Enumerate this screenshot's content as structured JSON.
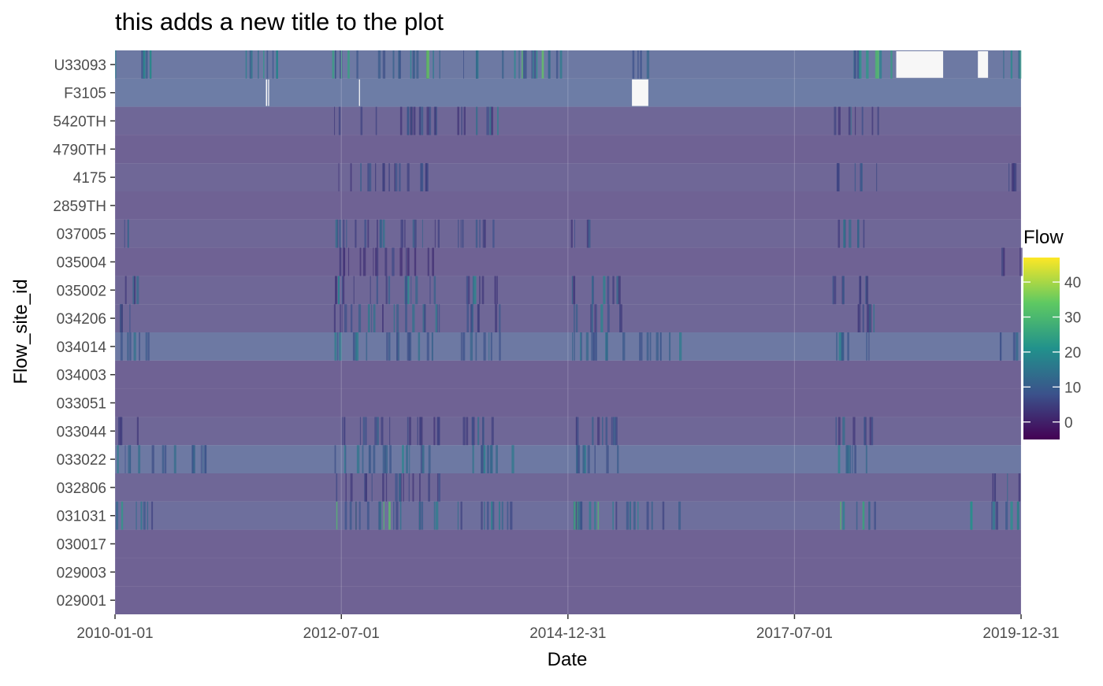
{
  "chart_data": {
    "type": "heatmap",
    "title": "this adds a new title to the plot",
    "xlabel": "Date",
    "ylabel": "Flow_site_id",
    "x_range": [
      "2010-01-01",
      "2019-12-31"
    ],
    "x_ticks": [
      "2010-01-01",
      "2012-07-01",
      "2014-12-31",
      "2017-07-01",
      "2019-12-31"
    ],
    "y_categories": [
      "U33093",
      "F3105",
      "5420TH",
      "4790TH",
      "4175",
      "2859TH",
      "037005",
      "035004",
      "035002",
      "034206",
      "034014",
      "034003",
      "033051",
      "033044",
      "033022",
      "032806",
      "031031",
      "030017",
      "029003",
      "029001"
    ],
    "legend": {
      "title": "Flow",
      "placement": "right",
      "ticks": [
        40,
        30,
        20,
        10,
        0
      ],
      "range": [
        -5,
        47
      ],
      "colormap": "viridis"
    },
    "rows": [
      {
        "site": "U33093",
        "base": 7,
        "spike_periods": [
          [
            "2010-01-01",
            "2010-06-01"
          ],
          [
            "2011-04-01",
            "2011-11-01"
          ],
          [
            "2012-05-01",
            "2013-08-01"
          ],
          [
            "2013-10-01",
            "2014-12-01"
          ],
          [
            "2015-09-01",
            "2015-12-01"
          ],
          [
            "2017-12-01",
            "2018-08-01"
          ],
          [
            "2019-10-01",
            "2019-12-31"
          ]
        ],
        "peak": 40,
        "missing": [
          [
            "2018-08-15",
            "2019-02-20"
          ],
          [
            "2019-07-10",
            "2019-08-20"
          ]
        ]
      },
      {
        "site": "F3105",
        "base": 8,
        "spike_periods": [],
        "peak": 12,
        "missing": [
          [
            "2011-09-01",
            "2011-09-06"
          ],
          [
            "2011-09-10",
            "2011-09-14"
          ],
          [
            "2012-09-10",
            "2012-09-14"
          ],
          [
            "2015-09-15",
            "2015-11-20"
          ]
        ]
      },
      {
        "site": "5420TH",
        "base": 3,
        "spike_periods": [
          [
            "2012-06-01",
            "2013-08-01"
          ],
          [
            "2013-10-01",
            "2014-04-01"
          ],
          [
            "2017-12-01",
            "2018-06-01"
          ]
        ],
        "peak": 22,
        "missing": []
      },
      {
        "site": "4790TH",
        "base": 2,
        "spike_periods": [],
        "peak": 4,
        "missing": []
      },
      {
        "site": "4175",
        "base": 3,
        "spike_periods": [
          [
            "2012-06-01",
            "2013-08-01"
          ],
          [
            "2017-12-01",
            "2018-06-01"
          ],
          [
            "2019-09-01",
            "2019-12-31"
          ]
        ],
        "peak": 14,
        "missing": []
      },
      {
        "site": "2859TH",
        "base": 2,
        "spike_periods": [],
        "peak": 4,
        "missing": []
      },
      {
        "site": "037005",
        "base": 3,
        "spike_periods": [
          [
            "2010-01-01",
            "2010-03-01"
          ],
          [
            "2012-06-01",
            "2013-08-01"
          ],
          [
            "2013-10-01",
            "2014-04-01"
          ],
          [
            "2015-01-01",
            "2015-04-01"
          ],
          [
            "2017-12-01",
            "2018-06-01"
          ]
        ],
        "peak": 18,
        "missing": []
      },
      {
        "site": "035004",
        "base": 2,
        "spike_periods": [
          [
            "2012-06-01",
            "2013-08-01"
          ],
          [
            "2019-10-01",
            "2019-12-31"
          ]
        ],
        "peak": 8,
        "missing": []
      },
      {
        "site": "035002",
        "base": 3,
        "spike_periods": [
          [
            "2010-01-01",
            "2010-04-01"
          ],
          [
            "2012-06-01",
            "2013-08-01"
          ],
          [
            "2013-10-01",
            "2014-04-01"
          ],
          [
            "2015-01-01",
            "2015-08-01"
          ],
          [
            "2017-12-01",
            "2018-06-01"
          ]
        ],
        "peak": 24,
        "missing": []
      },
      {
        "site": "034206",
        "base": 3,
        "spike_periods": [
          [
            "2010-01-01",
            "2010-04-01"
          ],
          [
            "2012-06-01",
            "2013-08-01"
          ],
          [
            "2013-10-01",
            "2014-04-01"
          ],
          [
            "2015-01-01",
            "2015-08-01"
          ],
          [
            "2017-12-01",
            "2018-06-01"
          ]
        ],
        "peak": 24,
        "missing": []
      },
      {
        "site": "034014",
        "base": 7,
        "spike_periods": [
          [
            "2010-01-01",
            "2010-06-01"
          ],
          [
            "2012-06-01",
            "2013-08-01"
          ],
          [
            "2013-10-01",
            "2014-04-01"
          ],
          [
            "2015-01-01",
            "2016-04-01"
          ],
          [
            "2017-12-01",
            "2018-06-01"
          ],
          [
            "2019-09-01",
            "2019-12-31"
          ]
        ],
        "peak": 20,
        "missing": []
      },
      {
        "site": "034003",
        "base": 2,
        "spike_periods": [],
        "peak": 5,
        "missing": []
      },
      {
        "site": "033051",
        "base": 2,
        "spike_periods": [],
        "peak": 5,
        "missing": []
      },
      {
        "site": "033044",
        "base": 3,
        "spike_periods": [
          [
            "2010-01-01",
            "2010-04-01"
          ],
          [
            "2012-06-01",
            "2013-08-01"
          ],
          [
            "2013-10-01",
            "2014-04-01"
          ],
          [
            "2015-01-01",
            "2015-08-01"
          ],
          [
            "2017-12-01",
            "2018-06-01"
          ]
        ],
        "peak": 16,
        "missing": []
      },
      {
        "site": "033022",
        "base": 7,
        "spike_periods": [
          [
            "2010-01-01",
            "2011-01-01"
          ],
          [
            "2012-06-01",
            "2013-08-01"
          ],
          [
            "2013-10-01",
            "2014-06-01"
          ],
          [
            "2015-01-01",
            "2015-08-01"
          ],
          [
            "2017-12-01",
            "2018-06-01"
          ]
        ],
        "peak": 24,
        "missing": []
      },
      {
        "site": "032806",
        "base": 3,
        "spike_periods": [
          [
            "2012-06-01",
            "2013-08-01"
          ],
          [
            "2019-09-01",
            "2019-12-31"
          ]
        ],
        "peak": 14,
        "missing": []
      },
      {
        "site": "031031",
        "base": 5,
        "spike_periods": [
          [
            "2010-01-01",
            "2010-06-01"
          ],
          [
            "2012-06-01",
            "2013-08-01"
          ],
          [
            "2013-10-01",
            "2014-06-01"
          ],
          [
            "2015-01-01",
            "2016-04-01"
          ],
          [
            "2017-12-01",
            "2018-06-01"
          ],
          [
            "2019-06-01",
            "2019-12-31"
          ]
        ],
        "peak": 42,
        "missing": []
      },
      {
        "site": "030017",
        "base": 2,
        "spike_periods": [],
        "peak": 4,
        "missing": []
      },
      {
        "site": "029003",
        "base": 2,
        "spike_periods": [],
        "peak": 4,
        "missing": []
      },
      {
        "site": "029001",
        "base": 2,
        "spike_periods": [],
        "peak": 4,
        "missing": []
      }
    ]
  }
}
